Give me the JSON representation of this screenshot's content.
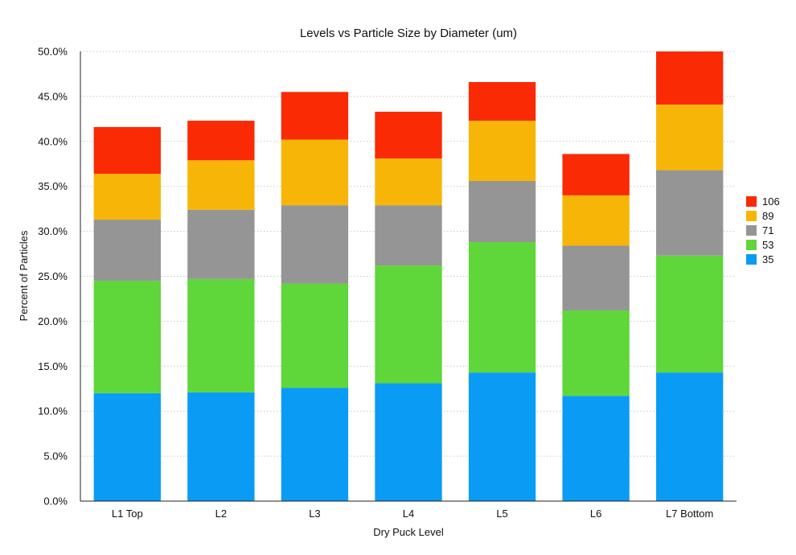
{
  "chart_data": {
    "type": "bar",
    "stacked": true,
    "title": "Levels vs Particle Size by Diameter (um)",
    "xlabel": "Dry Puck Level",
    "ylabel": "Percent of Particles",
    "ylim": [
      0,
      50
    ],
    "ytick_step": 5,
    "ytick_suffix": "%",
    "grid": true,
    "legend_position": "right",
    "categories": [
      "L1 Top",
      "L2",
      "L3",
      "L4",
      "L5",
      "L6",
      "L7 Bottom"
    ],
    "series": [
      {
        "name": "35",
        "color": "#0a9cf5",
        "values": [
          12.0,
          12.1,
          12.6,
          13.1,
          14.3,
          11.7,
          14.3
        ]
      },
      {
        "name": "53",
        "color": "#5fd63a",
        "values": [
          12.5,
          12.6,
          11.6,
          13.1,
          14.5,
          9.5,
          13.0
        ]
      },
      {
        "name": "71",
        "color": "#959595",
        "values": [
          6.8,
          7.7,
          8.7,
          6.7,
          6.8,
          7.2,
          9.5
        ]
      },
      {
        "name": "89",
        "color": "#f7b607",
        "values": [
          5.1,
          5.5,
          7.3,
          5.2,
          6.7,
          5.6,
          7.3
        ]
      },
      {
        "name": "106",
        "color": "#fa2a04",
        "values": [
          5.2,
          4.4,
          5.3,
          5.2,
          4.3,
          4.6,
          5.9
        ]
      }
    ]
  }
}
